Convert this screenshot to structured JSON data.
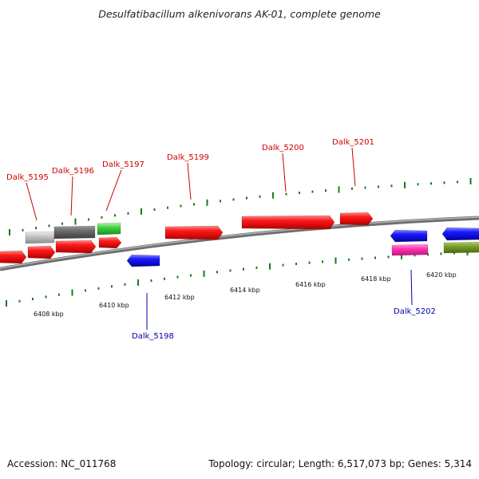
{
  "title": "Desulfatibacillum alkenivorans AK-01, complete genome",
  "footer": {
    "accession": "Accession: NC_011768",
    "topology": "Topology: circular; Length: 6,517,073 bp; Genes: 5,314"
  },
  "colors": {
    "forward_label": "#cc0000",
    "reverse_label": "#0000aa",
    "tick": "#1a7a1a",
    "backbone": "#8a8a8a"
  },
  "scale_labels": [
    "6408 kbp",
    "6410 kbp",
    "6412 kbp",
    "6414 kbp",
    "6416 kbp",
    "6418 kbp",
    "6420 kbp"
  ],
  "gene_labels": [
    {
      "text": "Dalk_5195",
      "strand": "+"
    },
    {
      "text": "Dalk_5196",
      "strand": "+"
    },
    {
      "text": "Dalk_5197",
      "strand": "+"
    },
    {
      "text": "Dalk_5199",
      "strand": "+"
    },
    {
      "text": "Dalk_5200",
      "strand": "+"
    },
    {
      "text": "Dalk_5201",
      "strand": "+"
    },
    {
      "text": "Dalk_5198",
      "strand": "-"
    },
    {
      "text": "Dalk_5202",
      "strand": "-"
    }
  ],
  "features": [
    {
      "color": "red"
    },
    {
      "color": "red"
    },
    {
      "color": "red"
    },
    {
      "color": "red"
    },
    {
      "color": "lightgray"
    },
    {
      "color": "darkgray"
    },
    {
      "color": "green"
    },
    {
      "color": "red"
    },
    {
      "color": "red"
    },
    {
      "color": "red"
    },
    {
      "color": "blue"
    },
    {
      "color": "blue"
    },
    {
      "color": "magenta"
    },
    {
      "color": "blue"
    },
    {
      "color": "olive"
    }
  ]
}
